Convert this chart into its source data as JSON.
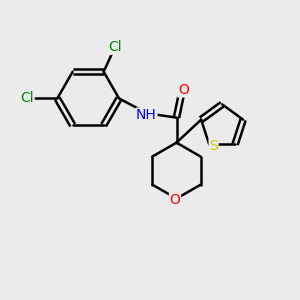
{
  "bg_color": "#ebebeb",
  "bond_color": "#000000",
  "bond_width": 1.8,
  "atom_colors": {
    "N": "#0000ff",
    "O": "#ff0000",
    "S": "#cccc00",
    "Cl": "#008800"
  },
  "font_size": 10,
  "fig_size": [
    3.0,
    3.0
  ],
  "dpi": 100
}
